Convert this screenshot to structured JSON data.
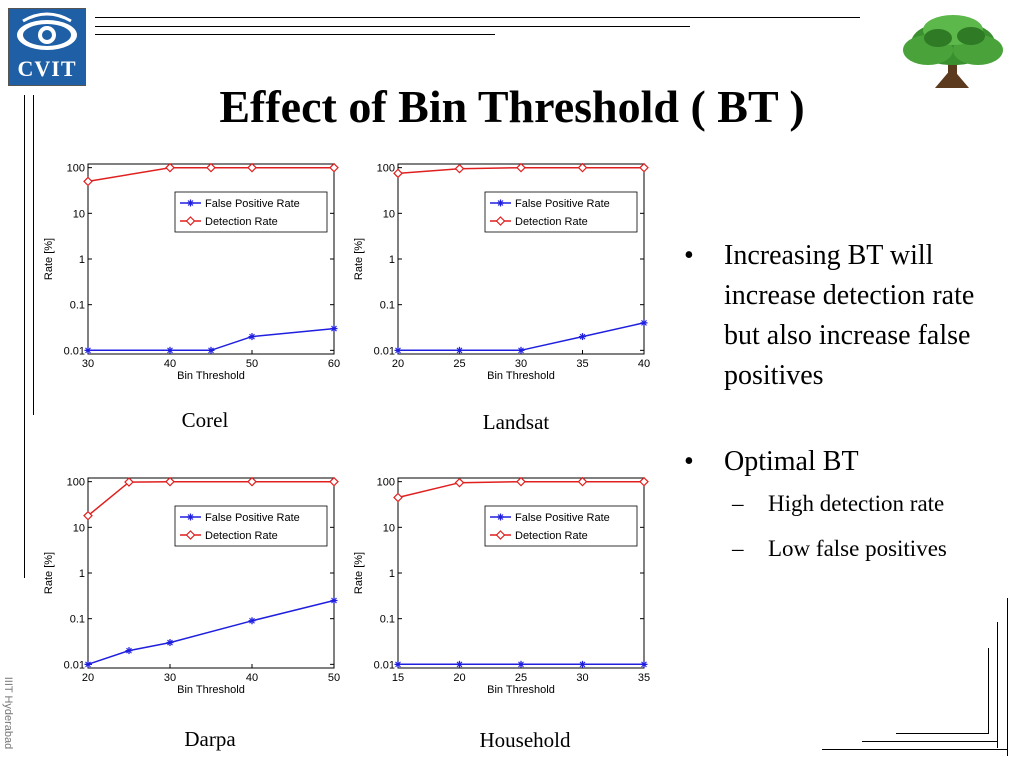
{
  "slide": {
    "title": "Effect of Bin Threshold ( BT )",
    "logo_text": "CVIT",
    "side_label": "IIIT Hyderabad"
  },
  "bullets": [
    {
      "text": "Increasing BT will increase detection rate but also increase false positives",
      "sub": []
    },
    {
      "text": "Optimal BT",
      "sub": [
        "High detection rate",
        "Low false positives"
      ]
    }
  ],
  "colors": {
    "false_positive": "#1f1fe0",
    "detection": "#e01f1f",
    "logo_bg": "#1f5fa6",
    "tree": "#3a8f2e"
  },
  "chart_data": [
    {
      "type": "line",
      "caption": "Corel",
      "xlabel": "Bin Threshold",
      "ylabel": "Rate [%]",
      "yscale": "log",
      "xlim": [
        30,
        60
      ],
      "xticks": [
        30,
        40,
        50,
        60
      ],
      "ylim": [
        0.01,
        100
      ],
      "yticks": [
        0.01,
        0.1,
        1,
        10,
        100
      ],
      "ytick_labels": [
        "0.01",
        "0.1",
        "1",
        "10",
        "100"
      ],
      "legend": "top-right",
      "series": [
        {
          "name": "False Positive Rate",
          "marker": "*",
          "x": [
            30,
            40,
            45,
            50,
            60
          ],
          "y": [
            0.01,
            0.01,
            0.01,
            0.02,
            0.03
          ]
        },
        {
          "name": "Detection Rate",
          "marker": "diamond",
          "x": [
            30,
            40,
            45,
            50,
            60
          ],
          "y": [
            50,
            100,
            100,
            100,
            100
          ]
        }
      ]
    },
    {
      "type": "line",
      "caption": "Landsat",
      "xlabel": "Bin Threshold",
      "ylabel": "Rate [%]",
      "yscale": "log",
      "xlim": [
        20,
        40
      ],
      "xticks": [
        20,
        25,
        30,
        35,
        40
      ],
      "ylim": [
        0.01,
        100
      ],
      "yticks": [
        0.01,
        0.1,
        1,
        10,
        100
      ],
      "ytick_labels": [
        "0.01",
        "0.1",
        "1",
        "10",
        "100"
      ],
      "legend": "top-right",
      "series": [
        {
          "name": "False Positive Rate",
          "marker": "*",
          "x": [
            20,
            25,
            30,
            35,
            40
          ],
          "y": [
            0.01,
            0.01,
            0.01,
            0.02,
            0.04
          ]
        },
        {
          "name": "Detection Rate",
          "marker": "diamond",
          "x": [
            20,
            25,
            30,
            35,
            40
          ],
          "y": [
            75,
            95,
            100,
            100,
            100
          ]
        }
      ]
    },
    {
      "type": "line",
      "caption": "Darpa",
      "xlabel": "Bin Threshold",
      "ylabel": "Rate [%]",
      "yscale": "log",
      "xlim": [
        20,
        50
      ],
      "xticks": [
        20,
        30,
        40,
        50
      ],
      "ylim": [
        0.01,
        100
      ],
      "yticks": [
        0.01,
        0.1,
        1,
        10,
        100
      ],
      "ytick_labels": [
        "0.01",
        "0.1",
        "1",
        "10",
        "100"
      ],
      "legend": "top-right",
      "series": [
        {
          "name": "False Positive Rate",
          "marker": "*",
          "x": [
            20,
            25,
            30,
            40,
            50
          ],
          "y": [
            0.01,
            0.02,
            0.03,
            0.09,
            0.25
          ]
        },
        {
          "name": "Detection Rate",
          "marker": "diamond",
          "x": [
            20,
            25,
            30,
            40,
            50
          ],
          "y": [
            18,
            98,
            100,
            100,
            100
          ]
        }
      ]
    },
    {
      "type": "line",
      "caption": "Household",
      "xlabel": "Bin Threshold",
      "ylabel": "Rate [%]",
      "yscale": "log",
      "xlim": [
        15,
        35
      ],
      "xticks": [
        15,
        20,
        25,
        30,
        35
      ],
      "ylim": [
        0.01,
        100
      ],
      "yticks": [
        0.01,
        0.1,
        1,
        10,
        100
      ],
      "ytick_labels": [
        "0.01",
        "0.1",
        "1",
        "10",
        "100"
      ],
      "legend": "top-right",
      "series": [
        {
          "name": "False Positive Rate",
          "marker": "*",
          "x": [
            15,
            20,
            25,
            30,
            35
          ],
          "y": [
            0.01,
            0.01,
            0.01,
            0.01,
            0.01
          ]
        },
        {
          "name": "Detection Rate",
          "marker": "diamond",
          "x": [
            15,
            20,
            25,
            30,
            35
          ],
          "y": [
            45,
            95,
            100,
            100,
            100
          ]
        }
      ]
    }
  ]
}
